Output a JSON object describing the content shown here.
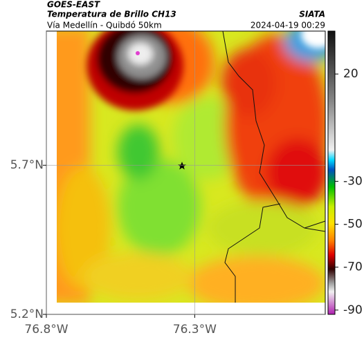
{
  "header": {
    "satellite": "GOES-EAST",
    "title": "Temperatura de Brillo CH13",
    "subtitle": "Vía Medellín - Quibdó 50km",
    "source": "SIATA",
    "date": "2024-04-19 00:29"
  },
  "map": {
    "xlim": [
      -76.8,
      -75.86
    ],
    "ylim": [
      5.2,
      6.15
    ],
    "xticks": [
      {
        "value": -76.8,
        "label": "76.8°W"
      },
      {
        "value": -76.3,
        "label": "76.3°W"
      }
    ],
    "yticks": [
      {
        "value": 5.7,
        "label": "5.7°N"
      },
      {
        "value": 5.2,
        "label": "5.2°N"
      }
    ],
    "grid": true
  },
  "colorbar": {
    "lim": [
      -92,
      40
    ],
    "ticks": [
      20,
      -30,
      -50,
      -70,
      -90
    ]
  }
}
